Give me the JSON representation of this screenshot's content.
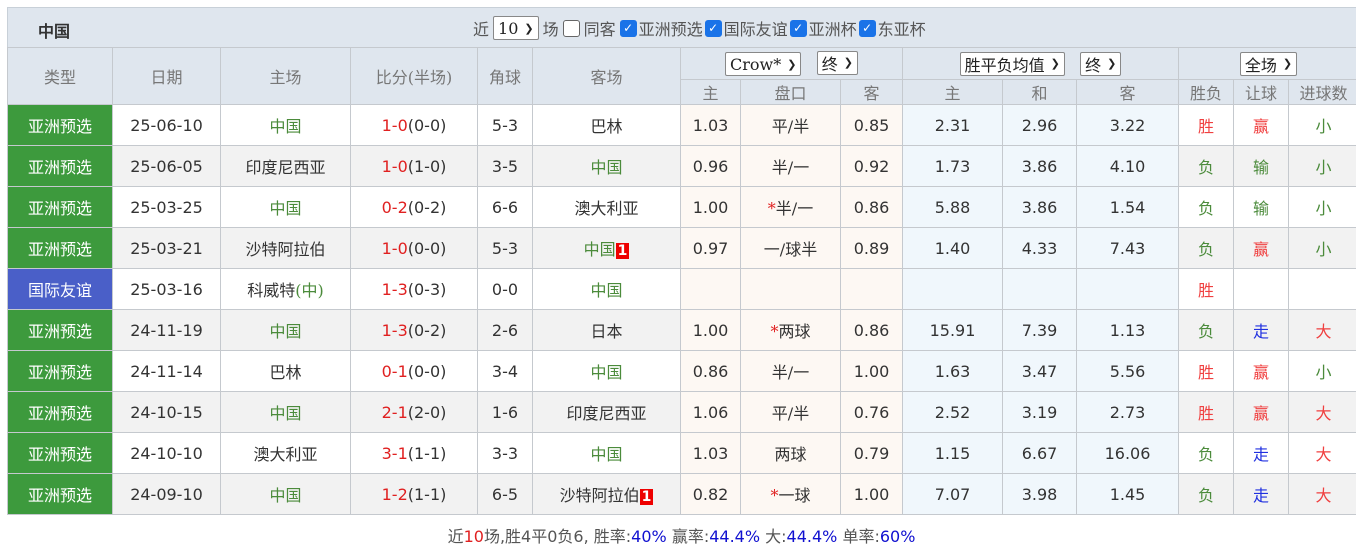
{
  "title": "中国",
  "filters": {
    "near_label": "近",
    "count": "10",
    "games_label": "场",
    "same_away": "同客",
    "checks": [
      "亚洲预选",
      "国际友谊",
      "亚洲杯",
      "东亚杯"
    ]
  },
  "selects": {
    "company": "Crow*",
    "company_type": "终",
    "avg": "胜平负均值",
    "avg_type": "终",
    "range": "全场"
  },
  "headers": {
    "type": "类型",
    "date": "日期",
    "home": "主场",
    "score": "比分(半场)",
    "corner": "角球",
    "away": "客场",
    "sub": [
      "主",
      "盘口",
      "客",
      "主",
      "和",
      "客",
      "胜负",
      "让球",
      "进球数"
    ]
  },
  "colors": {
    "asia_qual": "#3d9a3d",
    "friendly": "#4a5fc8"
  },
  "rows": [
    {
      "type": "亚洲预选",
      "date": "25-06-10",
      "home": "中国",
      "homeCn": true,
      "ft": "1-0",
      "ht": "(0-0)",
      "corner": "5-3",
      "away": "巴林",
      "awayCn": false,
      "o": [
        "1.03",
        "平/半",
        "0.85"
      ],
      "e": [
        "2.31",
        "2.96",
        "3.22"
      ],
      "r": [
        "胜",
        "赢",
        "小"
      ]
    },
    {
      "type": "亚洲预选",
      "date": "25-06-05",
      "home": "印度尼西亚",
      "ft": "1-0",
      "ht": "(1-0)",
      "corner": "3-5",
      "away": "中国",
      "awayCn": true,
      "o": [
        "0.96",
        "半/一",
        "0.92"
      ],
      "e": [
        "1.73",
        "3.86",
        "4.10"
      ],
      "r": [
        "负",
        "输",
        "小"
      ]
    },
    {
      "type": "亚洲预选",
      "date": "25-03-25",
      "home": "中国",
      "homeCn": true,
      "ft": "0-2",
      "ht": "(0-2)",
      "corner": "6-6",
      "away": "澳大利亚",
      "o": [
        "1.00",
        "半/一",
        "0.86"
      ],
      "star": true,
      "e": [
        "5.88",
        "3.86",
        "1.54"
      ],
      "r": [
        "负",
        "输",
        "小"
      ]
    },
    {
      "type": "亚洲预选",
      "date": "25-03-21",
      "home": "沙特阿拉伯",
      "ft": "1-0",
      "ht": "(0-0)",
      "corner": "5-3",
      "away": "中国",
      "awayCn": true,
      "badge": "1",
      "o": [
        "0.97",
        "一/球半",
        "0.89"
      ],
      "e": [
        "1.40",
        "4.33",
        "7.43"
      ],
      "r": [
        "负",
        "赢",
        "小"
      ]
    },
    {
      "type": "国际友谊",
      "date": "25-03-16",
      "home": "科威特",
      "neutral": "(中)",
      "ft": "1-3",
      "ht": "(0-3)",
      "corner": "0-0",
      "away": "中国",
      "awayCn": true,
      "o": [
        "",
        "",
        ""
      ],
      "e": [
        "",
        "",
        ""
      ],
      "r": [
        "胜",
        "",
        ""
      ]
    },
    {
      "type": "亚洲预选",
      "date": "24-11-19",
      "home": "中国",
      "homeCn": true,
      "ft": "1-3",
      "ht": "(0-2)",
      "corner": "2-6",
      "away": "日本",
      "o": [
        "1.00",
        "两球",
        "0.86"
      ],
      "star": true,
      "e": [
        "15.91",
        "7.39",
        "1.13"
      ],
      "r": [
        "负",
        "走",
        "大"
      ]
    },
    {
      "type": "亚洲预选",
      "date": "24-11-14",
      "home": "巴林",
      "ft": "0-1",
      "ht": "(0-0)",
      "corner": "3-4",
      "away": "中国",
      "awayCn": true,
      "o": [
        "0.86",
        "半/一",
        "1.00"
      ],
      "e": [
        "1.63",
        "3.47",
        "5.56"
      ],
      "r": [
        "胜",
        "赢",
        "小"
      ]
    },
    {
      "type": "亚洲预选",
      "date": "24-10-15",
      "home": "中国",
      "homeCn": true,
      "ft": "2-1",
      "ht": "(2-0)",
      "corner": "1-6",
      "away": "印度尼西亚",
      "o": [
        "1.06",
        "平/半",
        "0.76"
      ],
      "e": [
        "2.52",
        "3.19",
        "2.73"
      ],
      "r": [
        "胜",
        "赢",
        "大"
      ]
    },
    {
      "type": "亚洲预选",
      "date": "24-10-10",
      "home": "澳大利亚",
      "ft": "3-1",
      "ht": "(1-1)",
      "corner": "3-3",
      "away": "中国",
      "awayCn": true,
      "o": [
        "1.03",
        "两球",
        "0.79"
      ],
      "e": [
        "1.15",
        "6.67",
        "16.06"
      ],
      "r": [
        "负",
        "走",
        "大"
      ]
    },
    {
      "type": "亚洲预选",
      "date": "24-09-10",
      "home": "中国",
      "homeCn": true,
      "ft": "1-2",
      "ht": "(1-1)",
      "corner": "6-5",
      "away": "沙特阿拉伯",
      "badge": "1",
      "o": [
        "0.82",
        "一球",
        "1.00"
      ],
      "star": true,
      "e": [
        "7.07",
        "3.98",
        "1.45"
      ],
      "r": [
        "负",
        "走",
        "大"
      ]
    }
  ],
  "summary": {
    "p1": "近",
    "n": "10",
    "p2": "场,胜4平0负6, 胜率:",
    "win_rate": "40%",
    "p3": " 赢率:",
    "cover_rate": "44.4%",
    "p4": " 大:",
    "over_rate": "44.4%",
    "p5": " 单率:",
    "odd_rate": "60%"
  }
}
